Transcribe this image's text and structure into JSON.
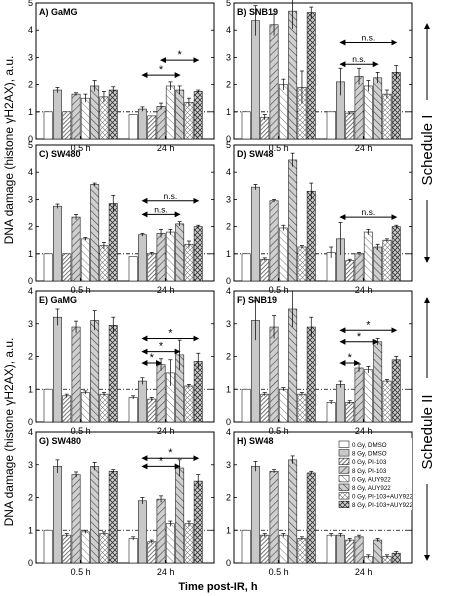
{
  "figure": {
    "ylabel_top": "DNA damage (histone γH2AX), a.u.",
    "ylabel_bottom": "DNA damage (histone γH2AX), a.u.",
    "xlabel": "Time post-IR, h",
    "schedule_top": "Schedule I",
    "schedule_bottom": "Schedule II",
    "group_labels": [
      "0.5 h",
      "24 h"
    ],
    "legend": [
      "0 Gy, DMSO",
      "8 Gy, DMSO",
      "0 Gy, PI-103",
      "8 Gy, PI-103",
      "0 Gy, AUY922",
      "8 Gy, AUY922",
      "0 Gy, PI-103+AUY922",
      "8 Gy, PI-103+AUY922"
    ],
    "sig_label": "n.s.",
    "star": "*"
  },
  "chart_data": [
    {
      "type": "bar",
      "title": "A) GaMG",
      "ylim": [
        0,
        5
      ],
      "yticks": [
        0,
        1,
        2,
        3,
        4,
        5
      ],
      "categories": [
        "0.5 h",
        "24 h"
      ],
      "series_values": [
        [
          1.0,
          1.8,
          1.0,
          1.65,
          1.5,
          1.95,
          1.55,
          1.8
        ],
        [
          0.9,
          1.1,
          0.85,
          1.2,
          1.95,
          1.8,
          1.35,
          1.75
        ]
      ],
      "errors": [
        [
          0,
          0.1,
          0,
          0.05,
          0.15,
          0.2,
          0.2,
          0.12
        ],
        [
          0,
          0.08,
          0,
          0.12,
          0.15,
          0.15,
          0.15,
          0.05
        ]
      ],
      "significance": [
        {
          "from": 3,
          "to": 7,
          "y": 2.9,
          "label": "*"
        },
        {
          "from": 1,
          "to": 5,
          "y": 2.35,
          "label": "*"
        }
      ]
    },
    {
      "type": "bar",
      "title": "B) SNB19",
      "ylim": [
        0,
        5
      ],
      "yticks": [
        0,
        1,
        2,
        3,
        4,
        5
      ],
      "categories": [
        "0.5 h",
        "24 h"
      ],
      "series_values": [
        [
          1.0,
          4.35,
          0.8,
          4.2,
          2.0,
          4.7,
          1.9,
          4.65
        ],
        [
          1.0,
          2.1,
          0.95,
          2.3,
          1.95,
          2.25,
          1.65,
          2.45
        ]
      ],
      "errors": [
        [
          0,
          0.55,
          0.1,
          0.4,
          0.2,
          0.65,
          0.6,
          0.2
        ],
        [
          0,
          0.5,
          0.05,
          0.3,
          0.2,
          0.2,
          0.15,
          0.25
        ]
      ],
      "significance": [
        {
          "from": 1,
          "to": 7,
          "y": 3.55,
          "label": "n.s."
        },
        {
          "from": 1,
          "to": 5,
          "y": 2.75,
          "label": "n.s."
        }
      ]
    },
    {
      "type": "bar",
      "title": "C) SW480",
      "ylim": [
        0,
        5
      ],
      "yticks": [
        0,
        1,
        2,
        3,
        4,
        5
      ],
      "categories": [
        "0.5 h",
        "24 h"
      ],
      "series_values": [
        [
          1.0,
          2.75,
          1.0,
          2.35,
          1.55,
          3.55,
          1.3,
          2.85
        ],
        [
          0.9,
          1.7,
          1.0,
          1.75,
          1.8,
          2.1,
          1.35,
          2.0
        ]
      ],
      "errors": [
        [
          0,
          0.08,
          0,
          0.1,
          0.05,
          0.05,
          0.12,
          0.3
        ],
        [
          0,
          0.05,
          0.05,
          0.15,
          0.1,
          0.08,
          0.12,
          0.05
        ]
      ],
      "significance": [
        {
          "from": 1,
          "to": 7,
          "y": 2.95,
          "label": "n.s."
        },
        {
          "from": 1,
          "to": 5,
          "y": 2.45,
          "label": "n.s."
        }
      ]
    },
    {
      "type": "bar",
      "title": "D) SW48",
      "ylim": [
        0,
        5
      ],
      "yticks": [
        0,
        1,
        2,
        3,
        4,
        5
      ],
      "categories": [
        "0.5 h",
        "24 h"
      ],
      "series_values": [
        [
          1.0,
          3.45,
          0.8,
          2.95,
          1.95,
          4.45,
          1.25,
          3.3
        ],
        [
          1.05,
          1.55,
          0.75,
          1.0,
          1.8,
          1.25,
          1.5,
          2.0
        ]
      ],
      "errors": [
        [
          0,
          0.1,
          0.05,
          0.05,
          0.1,
          0.25,
          0.05,
          0.3
        ],
        [
          0.2,
          0.6,
          0.05,
          0.05,
          0.1,
          0.1,
          0.05,
          0.05
        ]
      ],
      "significance": [
        {
          "from": 1,
          "to": 7,
          "y": 2.35,
          "label": "n.s."
        }
      ]
    },
    {
      "type": "bar",
      "title": "E) GaMG",
      "ylim": [
        0,
        4
      ],
      "yticks": [
        0,
        1,
        2,
        3,
        4
      ],
      "categories": [
        "0.5 h",
        "24 h"
      ],
      "series_values": [
        [
          1.0,
          3.2,
          0.8,
          2.9,
          0.9,
          3.1,
          0.85,
          2.95
        ],
        [
          0.75,
          1.25,
          0.7,
          1.75,
          1.5,
          2.05,
          1.1,
          1.85
        ]
      ],
      "errors": [
        [
          0,
          0.25,
          0.05,
          0.18,
          0.05,
          0.3,
          0.05,
          0.25
        ],
        [
          0.05,
          0.1,
          0.05,
          0.18,
          0.4,
          0.45,
          0.05,
          0.25
        ]
      ],
      "significance": [
        {
          "from": 1,
          "to": 7,
          "y": 2.55,
          "label": "*"
        },
        {
          "from": 1,
          "to": 5,
          "y": 2.15,
          "label": "*"
        },
        {
          "from": 1,
          "to": 3,
          "y": 1.8,
          "label": "*"
        }
      ]
    },
    {
      "type": "bar",
      "title": "F) SNB19",
      "ylim": [
        0,
        4
      ],
      "yticks": [
        0,
        1,
        2,
        3,
        4
      ],
      "categories": [
        "0.5 h",
        "24 h"
      ],
      "series_values": [
        [
          1.0,
          3.1,
          0.85,
          2.9,
          1.0,
          3.45,
          0.85,
          2.9
        ],
        [
          0.6,
          1.15,
          0.6,
          1.65,
          1.6,
          2.45,
          1.25,
          1.9
        ]
      ],
      "errors": [
        [
          0,
          0.6,
          0.05,
          0.35,
          0.05,
          0.55,
          0.05,
          0.3
        ],
        [
          0.05,
          0.1,
          0.05,
          0.12,
          0.1,
          0.1,
          0.05,
          0.1
        ]
      ],
      "significance": [
        {
          "from": 1,
          "to": 7,
          "y": 2.8,
          "label": "*"
        },
        {
          "from": 1,
          "to": 5,
          "y": 2.45,
          "label": "*"
        },
        {
          "from": 1,
          "to": 3,
          "y": 1.8,
          "label": "*"
        }
      ]
    },
    {
      "type": "bar",
      "title": "G) SW480",
      "ylim": [
        0,
        4
      ],
      "yticks": [
        0,
        1,
        2,
        3,
        4
      ],
      "categories": [
        "0.5 h",
        "24 h"
      ],
      "series_values": [
        [
          1.0,
          2.95,
          0.85,
          2.7,
          0.95,
          2.95,
          0.9,
          2.8
        ],
        [
          0.75,
          1.9,
          0.65,
          1.95,
          1.2,
          2.9,
          1.2,
          2.5
        ]
      ],
      "errors": [
        [
          0,
          0.2,
          0.05,
          0.08,
          0.05,
          0.12,
          0.05,
          0.05
        ],
        [
          0.05,
          0.1,
          0.05,
          0.1,
          0.08,
          0.25,
          0.08,
          0.2
        ]
      ],
      "significance": [
        {
          "from": 1,
          "to": 7,
          "y": 3.2,
          "label": "*"
        },
        {
          "from": 1,
          "to": 5,
          "y": 2.95,
          "label": "*"
        }
      ]
    },
    {
      "type": "bar",
      "title": "H) SW48",
      "ylim": [
        0,
        4
      ],
      "yticks": [
        0,
        1,
        2,
        3,
        4
      ],
      "categories": [
        "0.5 h",
        "24 h"
      ],
      "series_values": [
        [
          1.0,
          2.95,
          0.85,
          2.8,
          0.85,
          3.15,
          0.75,
          2.75
        ],
        [
          0.85,
          0.85,
          0.7,
          0.8,
          0.2,
          0.7,
          0.2,
          0.3
        ]
      ],
      "errors": [
        [
          0,
          0.15,
          0.05,
          0.05,
          0.05,
          0.12,
          0.05,
          0.05
        ],
        [
          0.05,
          0.05,
          0.05,
          0.05,
          0.05,
          0.05,
          0.05,
          0.05
        ]
      ],
      "significance": []
    }
  ]
}
